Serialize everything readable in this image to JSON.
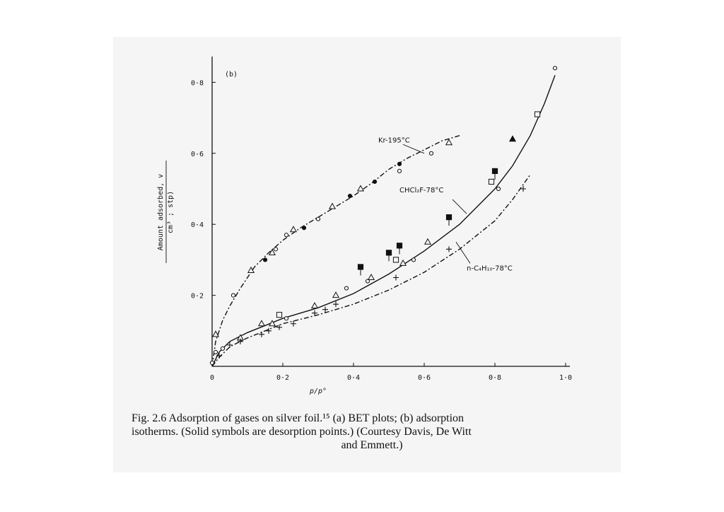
{
  "chart_data": {
    "type": "scatter",
    "panel_label": "(b)",
    "xlabel": "p/p°",
    "ylabel": "Amount adsorbed, v",
    "ylabel_unit": "cm³ ; stp)",
    "xlim": [
      0,
      1.0
    ],
    "ylim": [
      0,
      0.85
    ],
    "x_ticks": [
      {
        "value": 0,
        "label": "0"
      },
      {
        "value": 0.2,
        "label": "0·2"
      },
      {
        "value": 0.4,
        "label": "0·4"
      },
      {
        "value": 0.6,
        "label": "0·6"
      },
      {
        "value": 0.8,
        "label": "0·8"
      },
      {
        "value": 1.0,
        "label": "1·0"
      }
    ],
    "y_ticks": [
      {
        "value": 0.2,
        "label": "0·2"
      },
      {
        "value": 0.4,
        "label": "0·4"
      },
      {
        "value": 0.6,
        "label": "0·6"
      },
      {
        "value": 0.8,
        "label": "0·8"
      }
    ],
    "grid": false,
    "series": [
      {
        "name": "Kr-195°C",
        "curve": [
          [
            0,
            0
          ],
          [
            0.01,
            0.07
          ],
          [
            0.03,
            0.13
          ],
          [
            0.05,
            0.17
          ],
          [
            0.08,
            0.22
          ],
          [
            0.12,
            0.28
          ],
          [
            0.16,
            0.32
          ],
          [
            0.2,
            0.355
          ],
          [
            0.25,
            0.39
          ],
          [
            0.3,
            0.42
          ],
          [
            0.35,
            0.45
          ],
          [
            0.4,
            0.48
          ],
          [
            0.45,
            0.515
          ],
          [
            0.5,
            0.555
          ],
          [
            0.55,
            0.585
          ],
          [
            0.6,
            0.61
          ],
          [
            0.65,
            0.635
          ],
          [
            0.7,
            0.65
          ]
        ],
        "points": [
          {
            "x": 0.01,
            "y": 0.09,
            "marker": "triangle",
            "filled": false
          },
          {
            "x": 0.06,
            "y": 0.2,
            "marker": "circle",
            "filled": false
          },
          {
            "x": 0.11,
            "y": 0.27,
            "marker": "triangle",
            "filled": false
          },
          {
            "x": 0.15,
            "y": 0.3,
            "marker": "circle",
            "filled": true
          },
          {
            "x": 0.17,
            "y": 0.32,
            "marker": "triangle",
            "filled": false
          },
          {
            "x": 0.18,
            "y": 0.33,
            "marker": "circle",
            "filled": false
          },
          {
            "x": 0.21,
            "y": 0.37,
            "marker": "circle",
            "filled": false
          },
          {
            "x": 0.23,
            "y": 0.385,
            "marker": "triangle",
            "filled": false
          },
          {
            "x": 0.26,
            "y": 0.39,
            "marker": "circle",
            "filled": true
          },
          {
            "x": 0.3,
            "y": 0.415,
            "marker": "circle",
            "filled": false
          },
          {
            "x": 0.34,
            "y": 0.45,
            "marker": "triangle",
            "filled": false
          },
          {
            "x": 0.39,
            "y": 0.48,
            "marker": "circle",
            "filled": true
          },
          {
            "x": 0.42,
            "y": 0.5,
            "marker": "triangle",
            "filled": false
          },
          {
            "x": 0.46,
            "y": 0.52,
            "marker": "circle",
            "filled": true
          },
          {
            "x": 0.53,
            "y": 0.57,
            "marker": "circle",
            "filled": true
          },
          {
            "x": 0.53,
            "y": 0.55,
            "marker": "circle",
            "filled": false
          },
          {
            "x": 0.62,
            "y": 0.6,
            "marker": "circle",
            "filled": false
          },
          {
            "x": 0.67,
            "y": 0.63,
            "marker": "triangle",
            "filled": false
          }
        ]
      },
      {
        "name": "CHCl₂F-78°C",
        "curve": [
          [
            0,
            0
          ],
          [
            0.02,
            0.04
          ],
          [
            0.05,
            0.07
          ],
          [
            0.1,
            0.095
          ],
          [
            0.15,
            0.115
          ],
          [
            0.2,
            0.135
          ],
          [
            0.3,
            0.165
          ],
          [
            0.4,
            0.205
          ],
          [
            0.5,
            0.26
          ],
          [
            0.6,
            0.325
          ],
          [
            0.7,
            0.4
          ],
          [
            0.8,
            0.5
          ],
          [
            0.85,
            0.565
          ],
          [
            0.9,
            0.65
          ],
          [
            0.94,
            0.74
          ],
          [
            0.97,
            0.82
          ]
        ],
        "points": [
          {
            "x": 0.0,
            "y": 0.01,
            "marker": "circle",
            "filled": false
          },
          {
            "x": 0.01,
            "y": 0.04,
            "marker": "circle",
            "filled": false
          },
          {
            "x": 0.03,
            "y": 0.05,
            "marker": "circle",
            "filled": false
          },
          {
            "x": 0.08,
            "y": 0.08,
            "marker": "triangle",
            "filled": false
          },
          {
            "x": 0.14,
            "y": 0.12,
            "marker": "triangle",
            "filled": false
          },
          {
            "x": 0.17,
            "y": 0.12,
            "marker": "triangle",
            "filled": false
          },
          {
            "x": 0.19,
            "y": 0.145,
            "marker": "square",
            "filled": false
          },
          {
            "x": 0.21,
            "y": 0.135,
            "marker": "circle",
            "filled": false
          },
          {
            "x": 0.29,
            "y": 0.17,
            "marker": "triangle",
            "filled": false
          },
          {
            "x": 0.35,
            "y": 0.2,
            "marker": "triangle",
            "filled": false
          },
          {
            "x": 0.38,
            "y": 0.22,
            "marker": "circle",
            "filled": false
          },
          {
            "x": 0.42,
            "y": 0.28,
            "marker": "square",
            "filled": true
          },
          {
            "x": 0.44,
            "y": 0.24,
            "marker": "circle",
            "filled": false
          },
          {
            "x": 0.45,
            "y": 0.25,
            "marker": "triangle",
            "filled": false
          },
          {
            "x": 0.5,
            "y": 0.32,
            "marker": "square",
            "filled": true
          },
          {
            "x": 0.52,
            "y": 0.3,
            "marker": "square",
            "filled": false
          },
          {
            "x": 0.53,
            "y": 0.34,
            "marker": "square",
            "filled": true
          },
          {
            "x": 0.54,
            "y": 0.29,
            "marker": "triangle",
            "filled": false
          },
          {
            "x": 0.57,
            "y": 0.3,
            "marker": "circle",
            "filled": false
          },
          {
            "x": 0.61,
            "y": 0.35,
            "marker": "triangle",
            "filled": false
          },
          {
            "x": 0.67,
            "y": 0.42,
            "marker": "square",
            "filled": true
          },
          {
            "x": 0.79,
            "y": 0.52,
            "marker": "square",
            "filled": false
          },
          {
            "x": 0.8,
            "y": 0.55,
            "marker": "square",
            "filled": true
          },
          {
            "x": 0.81,
            "y": 0.5,
            "marker": "circle",
            "filled": false
          },
          {
            "x": 0.85,
            "y": 0.64,
            "marker": "triangle",
            "filled": true
          },
          {
            "x": 0.92,
            "y": 0.71,
            "marker": "square",
            "filled": false
          },
          {
            "x": 0.97,
            "y": 0.84,
            "marker": "circle",
            "filled": false
          }
        ]
      },
      {
        "name": "n-C₄H₁₀-78°C",
        "curve": [
          [
            0,
            0
          ],
          [
            0.02,
            0.025
          ],
          [
            0.05,
            0.055
          ],
          [
            0.1,
            0.08
          ],
          [
            0.15,
            0.1
          ],
          [
            0.2,
            0.12
          ],
          [
            0.3,
            0.145
          ],
          [
            0.4,
            0.175
          ],
          [
            0.5,
            0.215
          ],
          [
            0.6,
            0.265
          ],
          [
            0.7,
            0.33
          ],
          [
            0.8,
            0.41
          ],
          [
            0.85,
            0.47
          ],
          [
            0.9,
            0.54
          ]
        ],
        "points": [
          {
            "x": 0.02,
            "y": 0.03,
            "marker": "plus",
            "filled": false
          },
          {
            "x": 0.05,
            "y": 0.06,
            "marker": "plus",
            "filled": false
          },
          {
            "x": 0.08,
            "y": 0.07,
            "marker": "plus",
            "filled": false
          },
          {
            "x": 0.14,
            "y": 0.09,
            "marker": "plus",
            "filled": false
          },
          {
            "x": 0.16,
            "y": 0.1,
            "marker": "plus",
            "filled": false
          },
          {
            "x": 0.19,
            "y": 0.11,
            "marker": "plus",
            "filled": false
          },
          {
            "x": 0.23,
            "y": 0.12,
            "marker": "plus",
            "filled": false
          },
          {
            "x": 0.29,
            "y": 0.15,
            "marker": "plus",
            "filled": false
          },
          {
            "x": 0.32,
            "y": 0.16,
            "marker": "plus",
            "filled": false
          },
          {
            "x": 0.35,
            "y": 0.175,
            "marker": "plus",
            "filled": false
          },
          {
            "x": 0.52,
            "y": 0.25,
            "marker": "plus",
            "filled": false
          },
          {
            "x": 0.67,
            "y": 0.33,
            "marker": "plus",
            "filled": false
          },
          {
            "x": 0.88,
            "y": 0.5,
            "marker": "plus",
            "filled": false
          }
        ]
      }
    ]
  },
  "caption": {
    "line1": "Fig. 2.6 Adsorption of gases on silver foil.¹⁵ (a) BET plots; (b) adsorption",
    "line2": "isotherms. (Solid symbols are desorption points.) (Courtesy Davis, De Witt",
    "line3": "and Emmett.)"
  }
}
